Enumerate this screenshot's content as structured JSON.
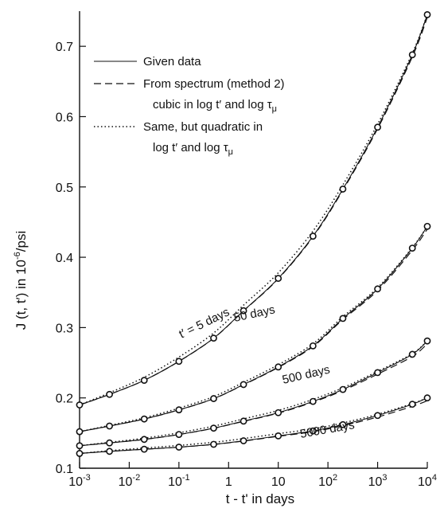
{
  "chart_data": {
    "type": "line",
    "x_scale": "log",
    "xlabel": "t - t' in days",
    "ylabel": "J (t, t') in 10⁻⁶/psi",
    "xlim": [
      0.001,
      10000
    ],
    "ylim": [
      0.1,
      0.75
    ],
    "x_ticks": [
      {
        "value": 0.001,
        "base": "10",
        "exp": "-3"
      },
      {
        "value": 0.01,
        "base": "10",
        "exp": "-2"
      },
      {
        "value": 0.1,
        "base": "10",
        "exp": "-1"
      },
      {
        "value": 1,
        "base": "1",
        "exp": ""
      },
      {
        "value": 10,
        "base": "10",
        "exp": ""
      },
      {
        "value": 100,
        "base": "10",
        "exp": "2"
      },
      {
        "value": 1000,
        "base": "10",
        "exp": "3"
      },
      {
        "value": 10000,
        "base": "10",
        "exp": "4"
      }
    ],
    "y_ticks": [
      {
        "value": 0.1,
        "label": "0.1"
      },
      {
        "value": 0.2,
        "label": "0.2"
      },
      {
        "value": 0.3,
        "label": "0.3"
      },
      {
        "value": 0.4,
        "label": "0.4"
      },
      {
        "value": 0.5,
        "label": "0.5"
      },
      {
        "value": 0.6,
        "label": "0.6"
      },
      {
        "value": 0.7,
        "label": "0.7"
      }
    ],
    "legend": {
      "placement": "top-left",
      "entries": [
        {
          "style": "solid",
          "lines": [
            "Given data"
          ]
        },
        {
          "style": "dashed",
          "lines": [
            "From spectrum (method 2)",
            "cubic in log t′ and log τμ"
          ]
        },
        {
          "style": "dotted",
          "lines": [
            "Same, but quadratic in",
            "log t′ and log τμ"
          ]
        }
      ]
    },
    "curve_labels": [
      "t′ = 5 days",
      "50 days",
      "500 days",
      "5000 days"
    ],
    "series": [
      {
        "x": [
          0.001,
          0.004,
          0.02,
          0.1,
          0.5,
          2,
          10,
          50,
          200,
          1000,
          5000,
          10000
        ],
        "y": [
          0.19,
          0.205,
          0.225,
          0.252,
          0.285,
          0.324,
          0.37,
          0.43,
          0.497,
          0.585,
          0.688,
          0.745
        ]
      },
      {
        "x": [
          0.001,
          0.004,
          0.02,
          0.1,
          0.5,
          2,
          10,
          50,
          200,
          1000,
          5000,
          10000
        ],
        "y": [
          0.152,
          0.16,
          0.17,
          0.183,
          0.199,
          0.219,
          0.244,
          0.274,
          0.313,
          0.355,
          0.413,
          0.444
        ]
      },
      {
        "x": [
          0.001,
          0.004,
          0.02,
          0.1,
          0.5,
          2,
          10,
          50,
          200,
          1000,
          5000,
          10000
        ],
        "y": [
          0.132,
          0.136,
          0.141,
          0.148,
          0.157,
          0.167,
          0.179,
          0.195,
          0.212,
          0.236,
          0.262,
          0.281
        ]
      },
      {
        "x": [
          0.001,
          0.004,
          0.02,
          0.1,
          0.5,
          2,
          10,
          50,
          200,
          1000,
          5000,
          10000
        ],
        "y": [
          0.121,
          0.124,
          0.127,
          0.13,
          0.134,
          0.139,
          0.146,
          0.153,
          0.162,
          0.175,
          0.191,
          0.2
        ]
      }
    ],
    "model_fit_offset": {
      "dashed": -0.004,
      "dotted": 0.008
    }
  }
}
